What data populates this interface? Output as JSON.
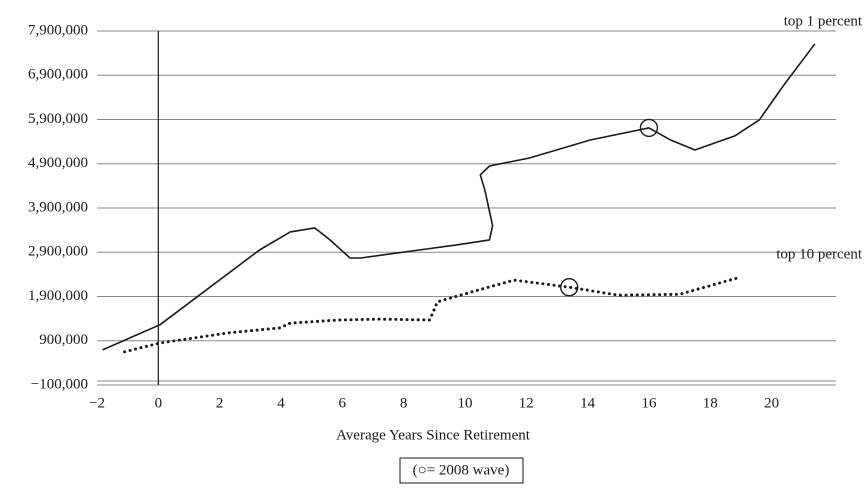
{
  "chart_data": {
    "type": "line",
    "x_label": "Average Years Since Retirement",
    "legend": "(○= 2008 wave)",
    "xlim": [
      -2,
      22.1
    ],
    "xticks": [
      {
        "value": -2,
        "label": "−2"
      },
      0,
      2,
      4,
      6,
      8,
      10,
      12,
      14,
      16,
      18,
      20
    ],
    "ylim": [
      -100000,
      7900000
    ],
    "yticks": [
      {
        "value": -100000,
        "label": "−100,000"
      },
      {
        "value": 900000,
        "label": "900,000"
      },
      {
        "value": 1900000,
        "label": "1,900,000"
      },
      {
        "value": 2900000,
        "label": "2,900,000"
      },
      {
        "value": 3900000,
        "label": "3,900,000"
      },
      {
        "value": 4900000,
        "label": "4,900,000"
      },
      {
        "value": 5900000,
        "label": "5,900,000"
      },
      {
        "value": 6900000,
        "label": "6,900,000"
      },
      {
        "value": 7900000,
        "label": "7,900,000"
      }
    ],
    "grid": true,
    "series": [
      {
        "name": "top 1 percent",
        "color": "#1a1a1a",
        "style": "solid",
        "x": [
          -1.8,
          0.05,
          3.3,
          4.3,
          5.1,
          5.6,
          6.25,
          6.6,
          8.5,
          9.67,
          10.8,
          10.9,
          10.65,
          10.5,
          10.8,
          12.1,
          14.1,
          16.0,
          16.7,
          17.5,
          18.8,
          19.6,
          20.4,
          21.4
        ],
        "values": [
          700000,
          1260000,
          2950000,
          3360000,
          3450000,
          3180000,
          2770000,
          2770000,
          2950000,
          3060000,
          3180000,
          3500000,
          4300000,
          4650000,
          4850000,
          5030000,
          5440000,
          5710000,
          5440000,
          5210000,
          5530000,
          5890000,
          6680000,
          7600000
        ],
        "highlight": {
          "x": 16.0,
          "y": 5710000
        }
      },
      {
        "name": "top 10 percent",
        "color": "#1a1a1a",
        "style": "dotted",
        "x": [
          -1.1,
          0.05,
          2.3,
          3.96,
          4.3,
          5.9,
          7.2,
          8.85,
          9.1,
          10.2,
          11.6,
          13.4,
          15.0,
          17.0,
          19.0
        ],
        "values": [
          650000,
          850000,
          1080000,
          1190000,
          1300000,
          1370000,
          1390000,
          1370000,
          1780000,
          2000000,
          2270000,
          2110000,
          1930000,
          1950000,
          2340000
        ],
        "highlight": {
          "x": 13.4,
          "y": 2110000
        }
      }
    ]
  }
}
